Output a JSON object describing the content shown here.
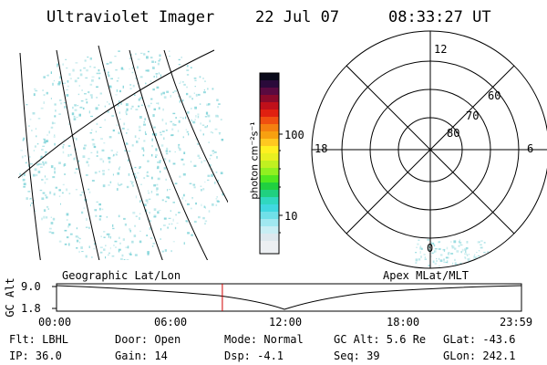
{
  "header": {
    "instrument": "Ultraviolet Imager",
    "date": "22 Jul 07",
    "time": "08:33:27 UT"
  },
  "colorbar": {
    "unit_label": "photon cm⁻²s⁻¹",
    "ticks": [
      "100",
      "10"
    ]
  },
  "polar_plot": {
    "mlt_labels": {
      "top": "12",
      "left": "18",
      "right": "6",
      "bottom": "0"
    },
    "mlat_labels": [
      "60",
      "70",
      "80"
    ]
  },
  "orbit_panel": {
    "left_title": "Geographic Lat/Lon",
    "right_title": "Apex MLat/MLT",
    "y_axis_label": "GC Alt",
    "y_ticks": [
      "9.0",
      "1.8"
    ],
    "x_ticks": [
      "00:00",
      "06:00",
      "12:00",
      "18:00",
      "23:59"
    ],
    "current_time_marker_hours": 8.56
  },
  "footer": {
    "flt": "Flt: LBHL",
    "ip": "IP: 36.0",
    "door": "Door: Open",
    "gain": "Gain: 14",
    "mode": "Mode: Normal",
    "dsp": "Dsp:  -4.1",
    "gc_alt": "GC Alt: 5.6 Re",
    "seq": "Seq: 39",
    "glat": "GLat: -43.6",
    "glon": "GLon: 242.1"
  },
  "colors": {
    "aurora_dots": "#7fd3d8",
    "time_marker": "#d00000"
  }
}
